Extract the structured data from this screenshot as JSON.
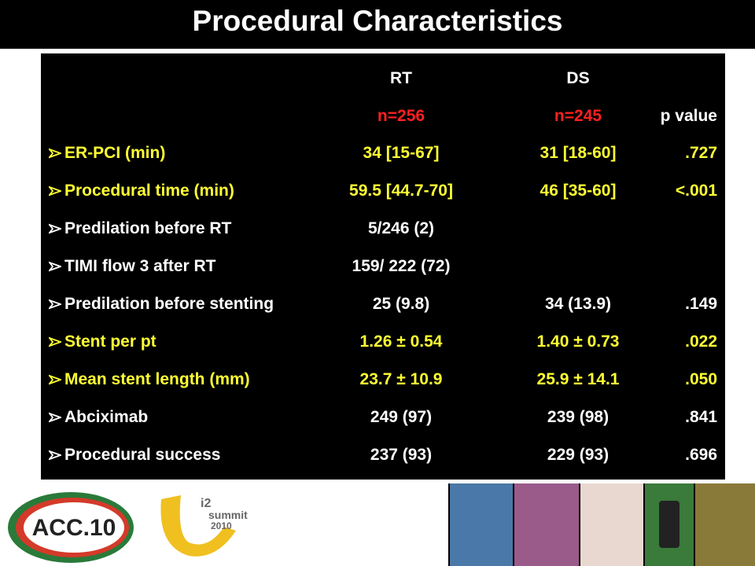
{
  "header": {
    "title": "Procedural Characteristics"
  },
  "table": {
    "columns": [
      {
        "name": "RT",
        "n": "n=256",
        "n_color": "#ff2020"
      },
      {
        "name": "DS",
        "n": "n=245",
        "n_color": "#ff2020"
      },
      {
        "name": null,
        "n": "p value",
        "n_color": "#ffffff"
      }
    ],
    "rows": [
      {
        "label": "ER-PCI (min)",
        "rt": "34 [15-67]",
        "ds": "31 [18-60]",
        "p": ".727",
        "color": "#ffff33"
      },
      {
        "label": "Procedural time (min)",
        "rt": "59.5 [44.7-70]",
        "ds": "46 [35-60]",
        "p": "<.001",
        "color": "#ffff33"
      },
      {
        "label": "Predilation before RT",
        "rt": "5/246 (2)",
        "ds": null,
        "p": null,
        "color": "#ffffff"
      },
      {
        "label": "TIMI flow 3 after RT",
        "rt": "159/ 222 (72)",
        "ds": null,
        "p": null,
        "color": "#ffffff"
      },
      {
        "label": "Predilation before stenting",
        "rt": "25 (9.8)",
        "ds": "34 (13.9)",
        "p": ".149",
        "color": "#ffffff"
      },
      {
        "label": "Stent per pt",
        "rt": "1.26 ± 0.54",
        "ds": "1.40 ± 0.73",
        "p": ".022",
        "color": "#ffff33"
      },
      {
        "label": "Mean stent length (mm)",
        "rt": "23.7 ± 10.9",
        "ds": "25.9 ± 14.1",
        "p": ".050",
        "color": "#ffff33"
      },
      {
        "label": "Abciximab",
        "rt": "249 (97)",
        "ds": "239 (98)",
        "p": ".841",
        "color": "#ffffff"
      },
      {
        "label": "Procedural success",
        "rt": "237 (93)",
        "ds": "229 (93)",
        "p": ".696",
        "color": "#ffffff"
      }
    ]
  },
  "footer": {
    "logo1": "ACC.10",
    "logo2_a": "i2",
    "logo2_b": "summit",
    "logo2_c": "2010"
  }
}
